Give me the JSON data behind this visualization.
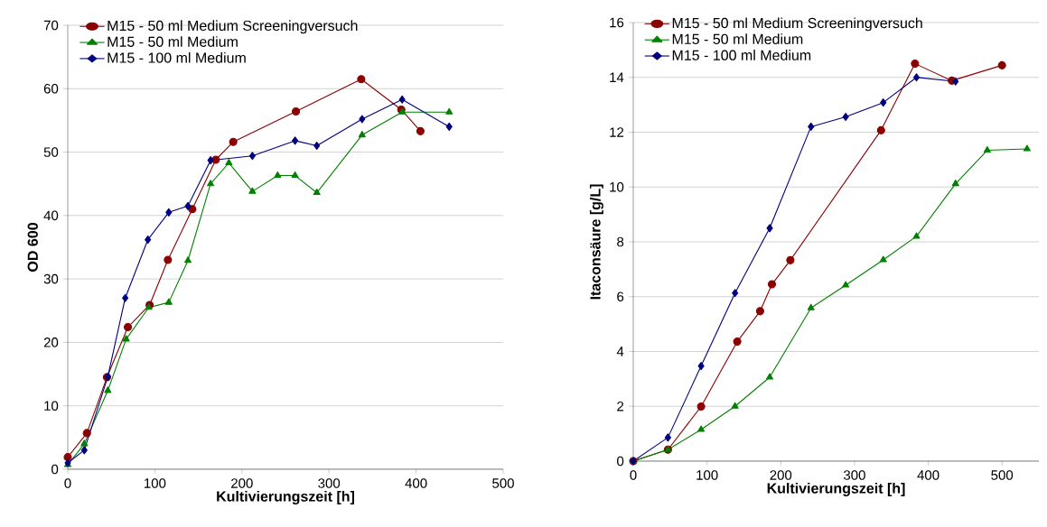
{
  "chart_data": [
    {
      "type": "line",
      "xlabel": "Kultivierungszeit [h]",
      "ylabel": "OD 600",
      "xlim": [
        0,
        500
      ],
      "xticks": [
        0,
        100,
        200,
        300,
        400,
        500
      ],
      "ylim": [
        0,
        70
      ],
      "yticks": [
        0,
        10,
        20,
        30,
        40,
        50,
        60,
        70
      ],
      "grid": "y",
      "legend": "top left",
      "line_style": "solid",
      "series": [
        {
          "name": "M15 - 50 ml Medium Screeningversuch",
          "color": "#8b0000",
          "marker": "circle",
          "x": [
            0,
            22,
            45,
            69,
            94,
            115,
            143,
            170,
            190,
            262,
            337,
            383,
            405
          ],
          "values": [
            1.9,
            5.7,
            14.5,
            22.4,
            25.9,
            33,
            41,
            48.8,
            51.6,
            56.4,
            61.5,
            56.7,
            53.3
          ]
        },
        {
          "name": "M15 - 50 ml Medium",
          "color": "#008000",
          "marker": "triangle",
          "x": [
            0,
            19,
            46,
            67,
            93,
            116,
            138,
            164,
            185,
            212,
            241,
            261,
            286,
            338,
            384,
            438
          ],
          "values": [
            0.7,
            4,
            12.4,
            20.5,
            25.5,
            26.3,
            32.9,
            45,
            48.3,
            43.8,
            46.3,
            46.3,
            43.6,
            52.7,
            56.3,
            56.3
          ]
        },
        {
          "name": "M15 - 100 ml Medium",
          "color": "#000080",
          "marker": "diamond",
          "x": [
            0,
            19,
            46,
            66,
            92,
            116,
            138,
            164,
            212,
            261,
            286,
            338,
            384,
            438
          ],
          "values": [
            1,
            3,
            14.6,
            27,
            36.2,
            40.5,
            41.5,
            48.7,
            49.4,
            51.8,
            51,
            55.2,
            58.3,
            54
          ]
        }
      ]
    },
    {
      "type": "line",
      "xlabel": "Kultivierungszeit [h]",
      "ylabel": "Itaconsäure [g/L]",
      "xlim": [
        0,
        550
      ],
      "xticks": [
        0,
        100,
        200,
        300,
        400,
        500
      ],
      "ylim": [
        0,
        16
      ],
      "yticks": [
        0,
        2,
        4,
        6,
        8,
        10,
        12,
        14,
        16
      ],
      "grid": "y",
      "legend": "top left",
      "line_style": "solid",
      "series": [
        {
          "name": "M15 - 50 ml Medium Screeningversuch",
          "color": "#8b0000",
          "marker": "circle",
          "x": [
            0,
            47,
            92,
            141,
            172,
            188,
            213,
            336,
            382,
            432,
            500
          ],
          "values": [
            0,
            0.42,
            1.99,
            4.36,
            5.47,
            6.45,
            7.33,
            12.07,
            14.5,
            13.88,
            14.44
          ]
        },
        {
          "name": "M15 - 50 ml Medium",
          "color": "#008000",
          "marker": "triangle",
          "x": [
            0,
            47,
            92,
            138,
            185,
            241,
            288,
            339,
            384,
            437,
            480,
            534
          ],
          "values": [
            0,
            0.42,
            1.15,
            2,
            3.06,
            5.59,
            6.42,
            7.34,
            8.2,
            10.12,
            11.34,
            11.39
          ]
        },
        {
          "name": "M15 - 100 ml Medium",
          "color": "#000080",
          "marker": "diamond",
          "x": [
            0,
            47,
            92,
            138,
            185,
            241,
            288,
            339,
            384,
            437
          ],
          "values": [
            0,
            0.86,
            3.47,
            6.13,
            8.5,
            12.2,
            12.56,
            13.08,
            14,
            13.85
          ]
        }
      ]
    }
  ]
}
